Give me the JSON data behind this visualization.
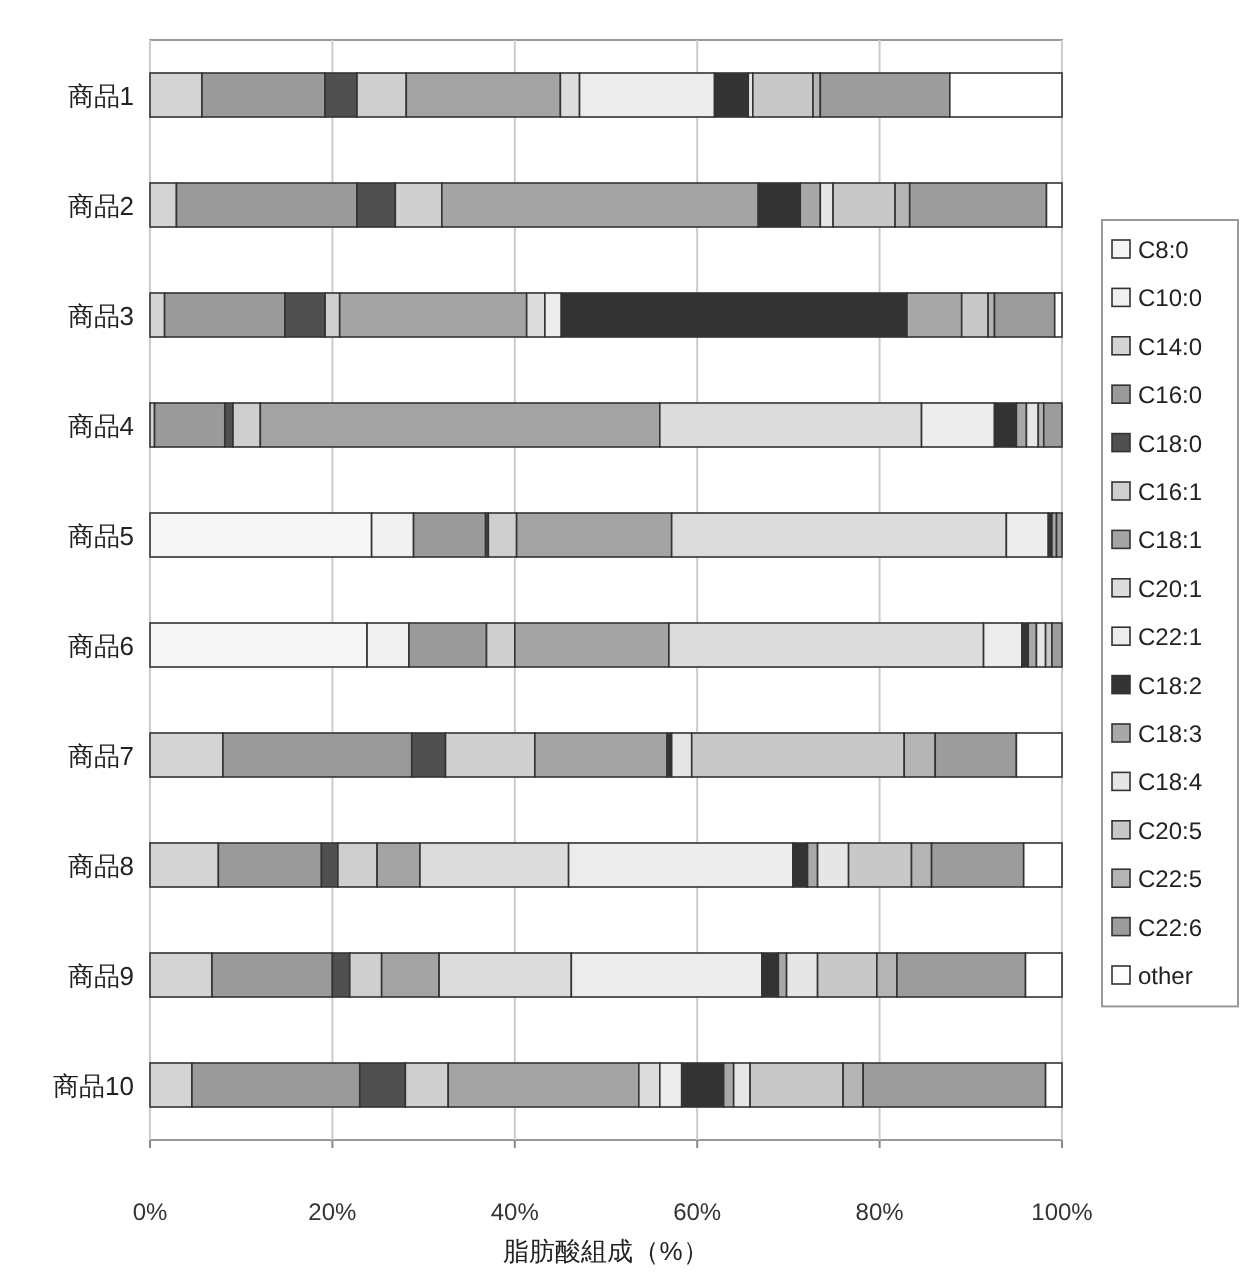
{
  "chart_data": {
    "type": "bar",
    "orientation": "horizontal",
    "stacked": true,
    "xlabel": "脂肪酸組成（%）",
    "categories": [
      "商品1",
      "商品2",
      "商品3",
      "商品4",
      "商品5",
      "商品6",
      "商品7",
      "商品8",
      "商品9",
      "商品10"
    ],
    "xlim": [
      0,
      100
    ],
    "xticks": [
      {
        "value": 0,
        "label": "0%"
      },
      {
        "value": 20,
        "label": "20%"
      },
      {
        "value": 40,
        "label": "40%"
      },
      {
        "value": 60,
        "label": "60%"
      },
      {
        "value": 80,
        "label": "80%"
      },
      {
        "value": 100,
        "label": "100%"
      }
    ],
    "grid": "x",
    "legend": "right",
    "series": [
      {
        "name": "C8:0",
        "color": "#f6f6f6",
        "values": [
          0,
          0,
          0,
          0,
          24.3,
          23.8,
          0,
          0,
          0,
          0
        ]
      },
      {
        "name": "C10:0",
        "color": "#f0f0f0",
        "values": [
          0,
          0,
          0,
          0,
          4.6,
          4.6,
          0,
          0,
          0,
          0
        ]
      },
      {
        "name": "C14:0",
        "color": "#d4d4d4",
        "values": [
          5.7,
          2.9,
          1.6,
          0.5,
          0,
          0,
          8.0,
          7.5,
          6.8,
          4.6
        ]
      },
      {
        "name": "C16:0",
        "color": "#9a9a9a",
        "values": [
          13.5,
          19.8,
          13.2,
          7.7,
          7.9,
          8.5,
          20.7,
          11.3,
          13.2,
          18.4
        ]
      },
      {
        "name": "C18:0",
        "color": "#505050",
        "values": [
          3.5,
          4.2,
          4.4,
          0.9,
          0.3,
          0,
          3.7,
          1.8,
          1.9,
          5.0
        ]
      },
      {
        "name": "C16:1",
        "color": "#cfcfcf",
        "values": [
          5.4,
          5.1,
          1.6,
          3.0,
          3.1,
          3.1,
          9.8,
          4.3,
          3.5,
          4.7
        ]
      },
      {
        "name": "C18:1",
        "color": "#a4a4a4",
        "values": [
          16.9,
          34.7,
          20.5,
          43.8,
          17.0,
          16.9,
          14.5,
          4.7,
          6.3,
          20.9
        ]
      },
      {
        "name": "C20:1",
        "color": "#dcdcdc",
        "values": [
          2.1,
          0,
          2.0,
          28.7,
          36.7,
          34.5,
          0,
          16.3,
          14.5,
          2.3
        ]
      },
      {
        "name": "C22:1",
        "color": "#ececec",
        "values": [
          14.8,
          0,
          1.8,
          8.0,
          4.6,
          4.2,
          0,
          24.6,
          20.9,
          2.4
        ]
      },
      {
        "name": "C18:2",
        "color": "#333333",
        "values": [
          3.7,
          4.6,
          37.9,
          2.4,
          0.4,
          0.7,
          0.5,
          1.6,
          1.8,
          4.6
        ]
      },
      {
        "name": "C18:3",
        "color": "#a8a8a8",
        "values": [
          0,
          2.2,
          6.0,
          1.1,
          0.5,
          0.9,
          0,
          1.1,
          0.9,
          1.1
        ]
      },
      {
        "name": "C18:4",
        "color": "#e6e6e6",
        "values": [
          0.5,
          1.4,
          0,
          1.3,
          0,
          1.0,
          2.2,
          3.4,
          3.4,
          1.8
        ]
      },
      {
        "name": "C20:5",
        "color": "#c8c8c8",
        "values": [
          6.6,
          6.8,
          2.9,
          0,
          0,
          0.7,
          23.3,
          6.9,
          6.5,
          10.2
        ]
      },
      {
        "name": "C22:5",
        "color": "#b4b4b4",
        "values": [
          0.8,
          1.6,
          0.7,
          0.6,
          0,
          0,
          3.4,
          2.2,
          2.2,
          2.2
        ]
      },
      {
        "name": "C22:6",
        "color": "#9c9c9c",
        "values": [
          14.2,
          15.0,
          6.6,
          2.0,
          0.6,
          1.1,
          8.9,
          10.1,
          14.1,
          20.0
        ]
      },
      {
        "name": "other",
        "color": "#ffffff",
        "values": [
          12.3,
          1.7,
          0.8,
          0,
          0,
          0,
          5.0,
          4.2,
          4.0,
          1.8
        ]
      }
    ]
  }
}
